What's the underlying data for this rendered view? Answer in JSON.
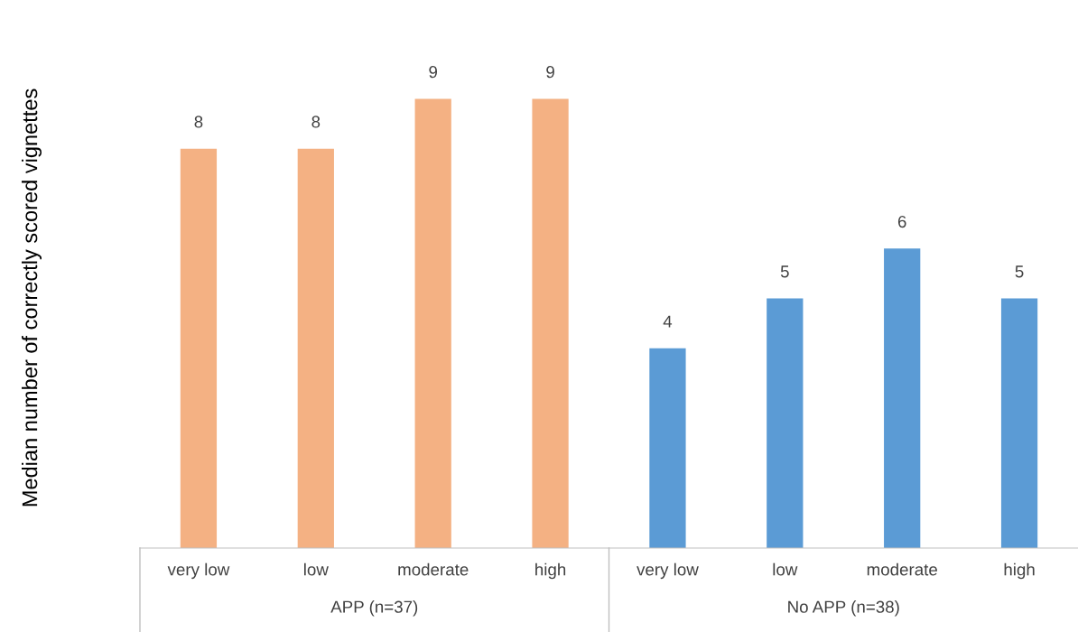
{
  "chart_data": {
    "type": "bar",
    "ylabel": "Median number of correctly scored vignettes",
    "categories": [
      "very low",
      "low",
      "moderate",
      "high",
      "very low",
      "low",
      "moderate",
      "high"
    ],
    "values": [
      8,
      8,
      9,
      9,
      4,
      5,
      6,
      5
    ],
    "colors": [
      "#f4b183",
      "#f4b183",
      "#f4b183",
      "#f4b183",
      "#5b9bd5",
      "#5b9bd5",
      "#5b9bd5",
      "#5b9bd5"
    ],
    "annotations": [
      "APP (n=37)",
      "No APP (n=38)"
    ],
    "data_labels": true
  }
}
